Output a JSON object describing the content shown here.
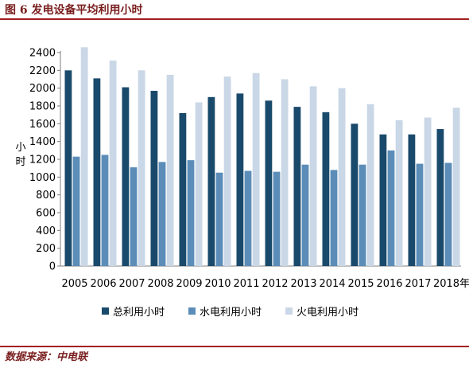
{
  "header": {
    "figure_title": "图 6  发电设备平均利用小时"
  },
  "footer": {
    "source": "数据来源：中电联"
  },
  "colors": {
    "total": "#1a4a6b",
    "hydro": "#5b8db8",
    "thermal": "#c9d7e6",
    "rule": "#a32020"
  },
  "chart_data": {
    "type": "bar",
    "ylabel": "小时",
    "x_unit_suffix": "年",
    "ylim": [
      0,
      2400
    ],
    "yticks": [
      0,
      200,
      400,
      600,
      800,
      1000,
      1200,
      1400,
      1600,
      1800,
      2000,
      2200,
      2400
    ],
    "grid": false,
    "legend_position": "bottom",
    "categories": [
      "2005",
      "2006",
      "2007",
      "2008",
      "2009",
      "2010",
      "2011",
      "2012",
      "2013",
      "2014",
      "2015",
      "2016",
      "2017",
      "2018"
    ],
    "series": [
      {
        "name": "总利用小时",
        "values": [
          2200,
          2110,
          2010,
          1970,
          1720,
          1900,
          1940,
          1860,
          1790,
          1730,
          1600,
          1480,
          1480,
          1540
        ]
      },
      {
        "name": "水电利用小时",
        "values": [
          1230,
          1250,
          1110,
          1170,
          1190,
          1050,
          1070,
          1060,
          1140,
          1080,
          1140,
          1300,
          1150,
          1160
        ]
      },
      {
        "name": "火电利用小时",
        "values": [
          2460,
          2310,
          2200,
          2150,
          1840,
          2130,
          2170,
          2100,
          2020,
          2000,
          1820,
          1640,
          1670,
          1780
        ]
      }
    ]
  }
}
